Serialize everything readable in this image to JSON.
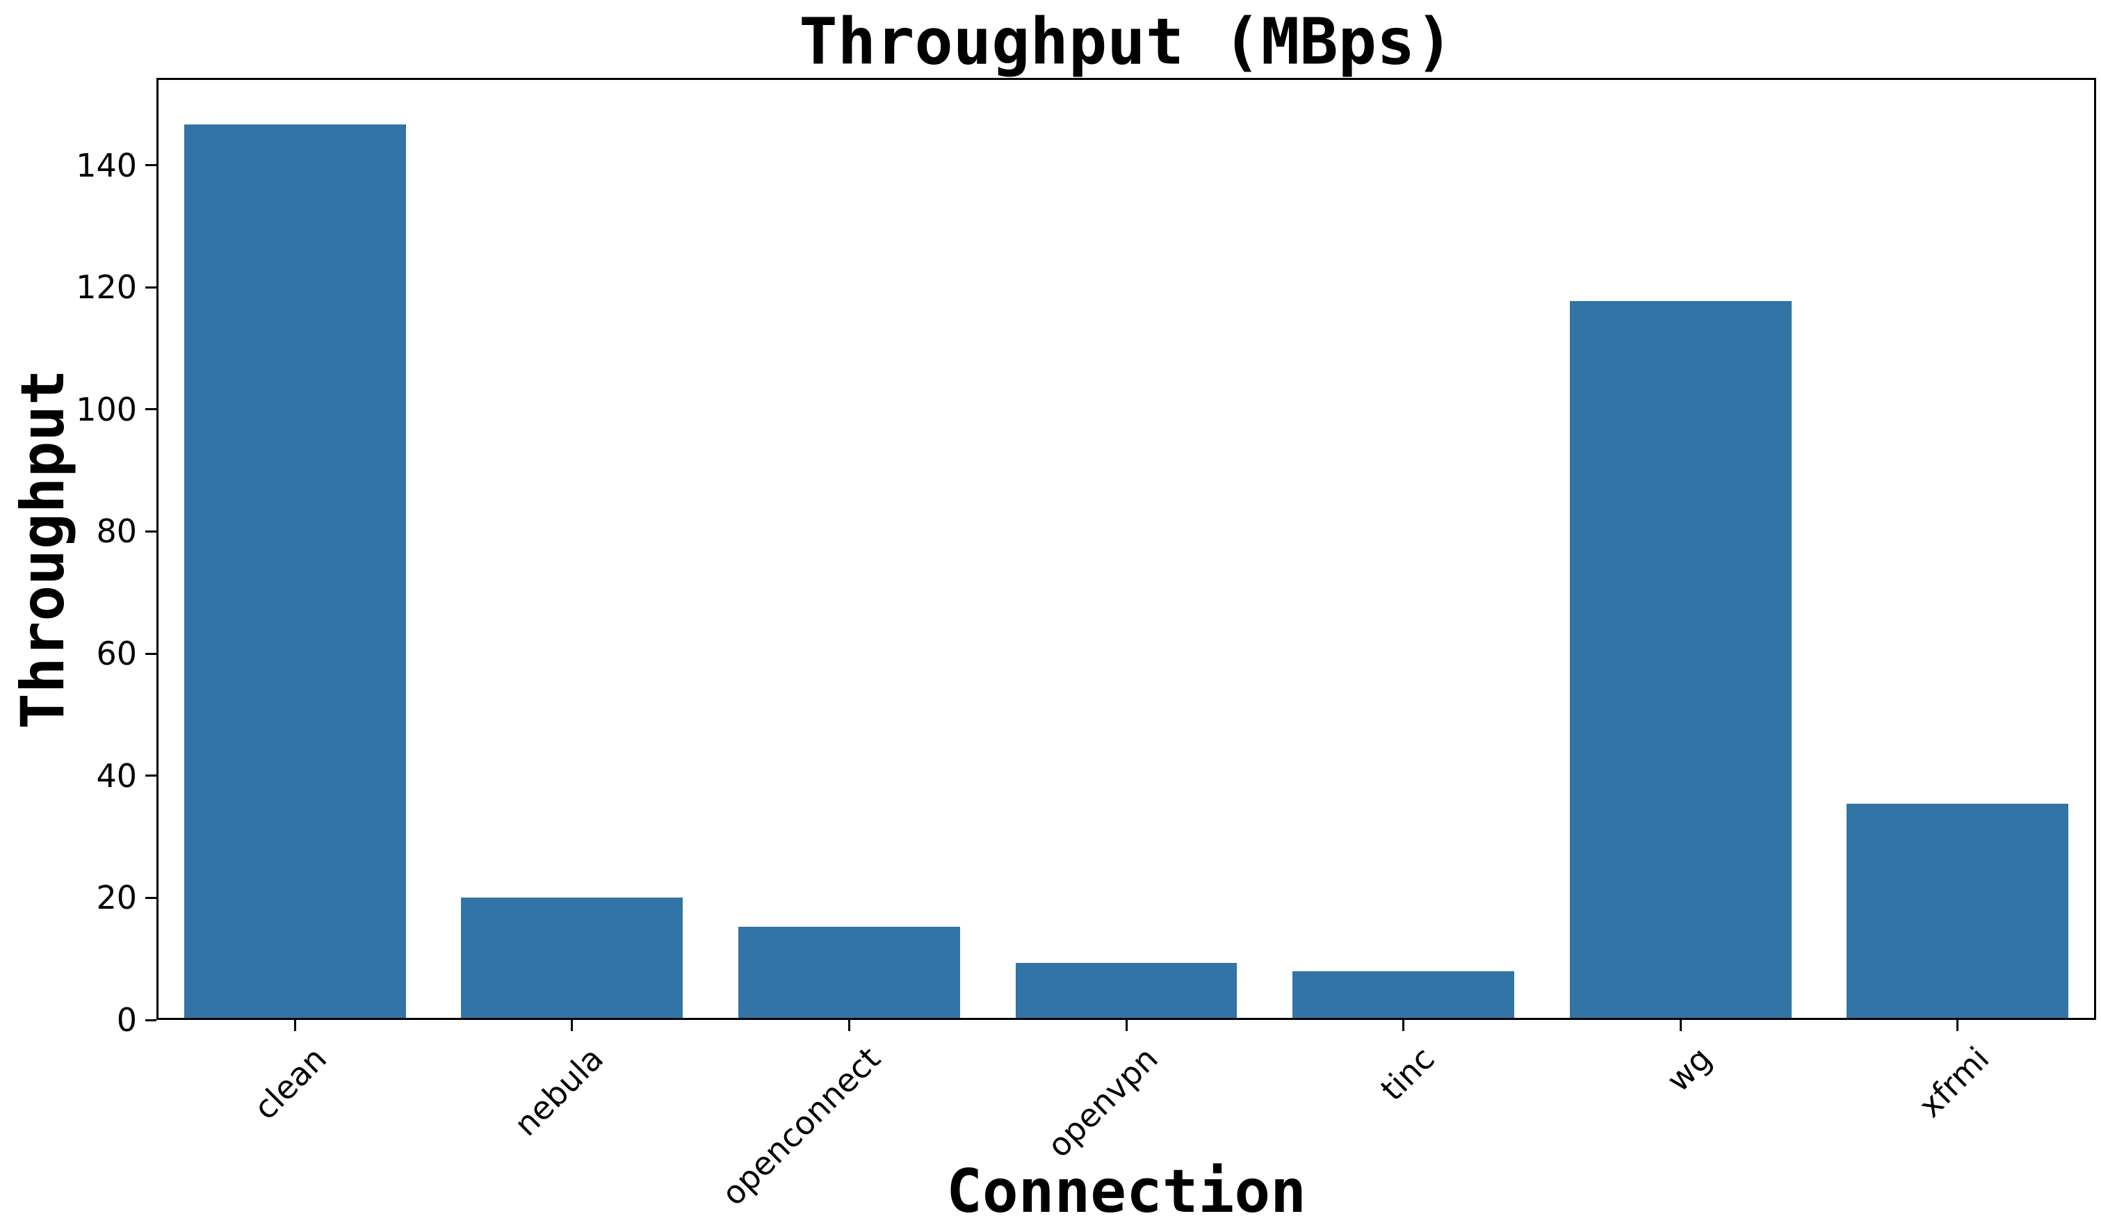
{
  "title": "Throughput (MBps)",
  "chart_data": {
    "type": "bar",
    "title": "Throughput (MBps)",
    "xlabel": "Connection",
    "ylabel": "Throughput",
    "categories": [
      "clean",
      "nebula",
      "openconnect",
      "openvpn",
      "tinc",
      "wg",
      "xfrmi"
    ],
    "values": [
      146.7,
      20.0,
      15.3,
      9.3,
      8.0,
      117.7,
      35.4
    ],
    "yticks": [
      0,
      20,
      40,
      60,
      80,
      100,
      120,
      140
    ],
    "ylim": [
      0,
      154.3
    ],
    "xtick_rotation_deg": 45,
    "grid": false,
    "legend": null,
    "bar_color": "#3274a5",
    "axis_color": "#000000",
    "background_color": "#ffffff"
  }
}
